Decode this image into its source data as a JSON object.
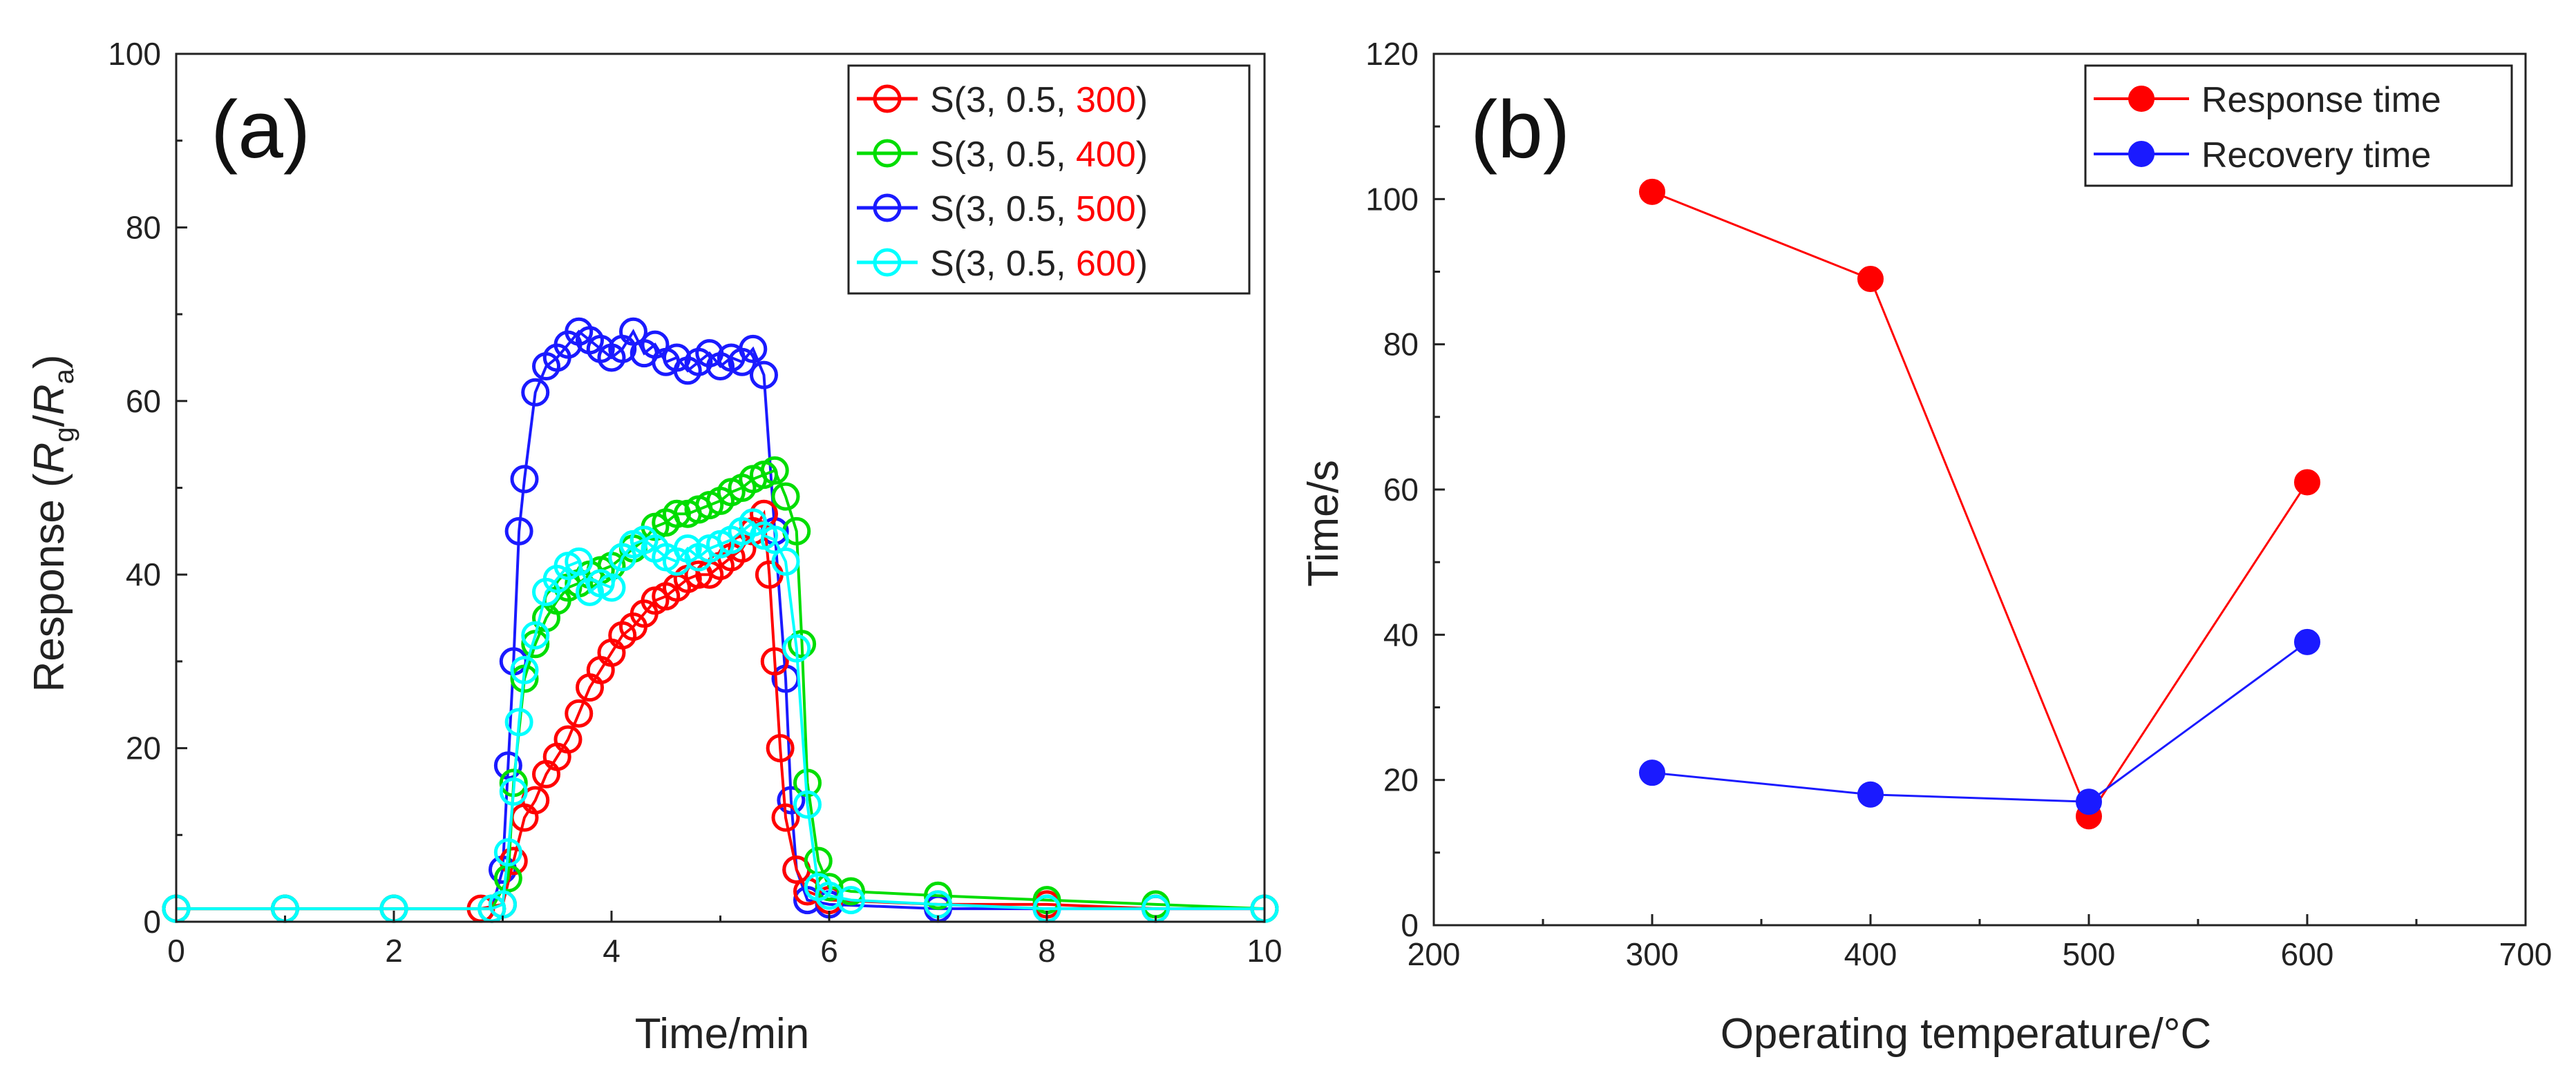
{
  "chart_data": [
    {
      "type": "line",
      "panel_label": "(a)",
      "xlabel": "Time/min",
      "ylabel": {
        "prefix": "Response (",
        "num": "R",
        "num_sub": "g",
        "slash": "/",
        "den": "R",
        "den_sub": "a",
        "suffix": ")"
      },
      "xlim": [
        0,
        10
      ],
      "ylim": [
        0,
        100
      ],
      "xticks": [
        0,
        2,
        4,
        6,
        8,
        10
      ],
      "yticks": [
        0,
        20,
        40,
        60,
        80,
        100
      ],
      "legend_position": "top-right",
      "series": [
        {
          "prefix": "S(3, 0.5, ",
          "temp": "300",
          "suffix": ")",
          "color": "#ff0000",
          "temp_color": "#ff0000",
          "x": [
            0,
            1,
            2,
            2.8,
            3.0,
            3.1,
            3.2,
            3.3,
            3.4,
            3.5,
            3.6,
            3.7,
            3.8,
            3.9,
            4.0,
            4.1,
            4.2,
            4.3,
            4.4,
            4.5,
            4.6,
            4.7,
            4.8,
            4.9,
            5.0,
            5.1,
            5.2,
            5.3,
            5.4,
            5.45,
            5.5,
            5.55,
            5.6,
            5.7,
            5.8,
            6.0,
            7,
            8,
            9,
            10
          ],
          "y": [
            1.5,
            1.5,
            1.5,
            1.5,
            2,
            7,
            12,
            14,
            17,
            19,
            21,
            24,
            27,
            29,
            31,
            33,
            34,
            35.5,
            37,
            37.5,
            38.5,
            39.5,
            40,
            40,
            41,
            42,
            43,
            45,
            47,
            40,
            30,
            20,
            12,
            6,
            3.5,
            2.5,
            2,
            2,
            1.5,
            1.5
          ]
        },
        {
          "prefix": "S(3, 0.5, ",
          "temp": "400",
          "suffix": ")",
          "color": "#00dd00",
          "temp_color": "#ff0000",
          "x": [
            0,
            1,
            2,
            2.9,
            3.05,
            3.1,
            3.2,
            3.3,
            3.4,
            3.5,
            3.6,
            3.7,
            3.8,
            3.9,
            4.0,
            4.1,
            4.2,
            4.3,
            4.4,
            4.5,
            4.6,
            4.7,
            4.8,
            4.9,
            5.0,
            5.1,
            5.2,
            5.3,
            5.4,
            5.5,
            5.6,
            5.7,
            5.75,
            5.8,
            5.9,
            6.0,
            6.2,
            7,
            8,
            9,
            10
          ],
          "y": [
            1.5,
            1.5,
            1.5,
            1.5,
            5,
            16,
            28,
            32,
            35,
            37,
            38.5,
            39,
            40,
            40.5,
            41,
            42,
            43,
            44,
            45.5,
            46,
            47,
            47,
            47.5,
            48,
            48.5,
            49.5,
            50,
            51,
            51.5,
            52,
            49,
            45,
            32,
            16,
            7,
            4,
            3.5,
            3,
            2.5,
            2,
            1.5
          ]
        },
        {
          "prefix": "S(3, 0.5, ",
          "temp": "500",
          "suffix": ")",
          "color": "#1a1aff",
          "temp_color": "#ff0000",
          "x": [
            0,
            1,
            2,
            2.9,
            3.0,
            3.05,
            3.1,
            3.15,
            3.2,
            3.3,
            3.4,
            3.5,
            3.6,
            3.7,
            3.8,
            3.9,
            4.0,
            4.1,
            4.2,
            4.3,
            4.4,
            4.5,
            4.6,
            4.7,
            4.8,
            4.9,
            5.0,
            5.1,
            5.2,
            5.3,
            5.4,
            5.5,
            5.6,
            5.65,
            5.7,
            5.8,
            6.0,
            7,
            8,
            9,
            10
          ],
          "y": [
            1.5,
            1.5,
            1.5,
            1.5,
            6,
            18,
            30,
            45,
            51,
            61,
            64,
            65,
            66.5,
            68,
            67,
            66,
            65,
            66,
            68,
            65.5,
            66.5,
            64.5,
            65,
            63.5,
            64.5,
            65.5,
            64,
            65,
            64.5,
            66,
            63,
            45,
            28,
            14,
            6,
            2.5,
            2,
            1.5,
            1.5,
            1.5,
            1.5
          ]
        },
        {
          "prefix": "S(3, 0.5, ",
          "temp": "600",
          "suffix": ")",
          "color": "#00ffff",
          "temp_color": "#ff0000",
          "x": [
            0,
            1,
            2,
            2.9,
            3.0,
            3.05,
            3.1,
            3.15,
            3.2,
            3.3,
            3.4,
            3.5,
            3.6,
            3.7,
            3.8,
            3.9,
            4.0,
            4.1,
            4.2,
            4.3,
            4.4,
            4.5,
            4.6,
            4.7,
            4.8,
            4.9,
            5.0,
            5.1,
            5.2,
            5.3,
            5.4,
            5.5,
            5.6,
            5.7,
            5.8,
            5.9,
            6.0,
            6.2,
            7,
            8,
            9,
            10
          ],
          "y": [
            1.5,
            1.5,
            1.5,
            1.5,
            2,
            8,
            15,
            23,
            29,
            33,
            38,
            39.5,
            41,
            41.5,
            38,
            39,
            38.5,
            42,
            43.5,
            44,
            43,
            42,
            41.5,
            43,
            42,
            43,
            43.5,
            44,
            45,
            46,
            44.5,
            44,
            41.5,
            31.5,
            13.5,
            4,
            3,
            2.5,
            2,
            1.5,
            1.5,
            1.5
          ]
        }
      ]
    },
    {
      "type": "line",
      "panel_label": "(b)",
      "xlabel": "Operating temperature/°C",
      "ylabel": "Time/s",
      "xlim": [
        200,
        700
      ],
      "ylim": [
        0,
        120
      ],
      "xticks": [
        200,
        300,
        400,
        500,
        600,
        700
      ],
      "yticks": [
        0,
        20,
        40,
        60,
        80,
        100,
        120
      ],
      "legend_position": "top-right",
      "categories": [
        300,
        400,
        500,
        600
      ],
      "series": [
        {
          "name": "Response time",
          "color": "#ff0000",
          "x": [
            300,
            400,
            500,
            600
          ],
          "values": [
            101,
            89,
            15,
            61
          ]
        },
        {
          "name": "Recovery time",
          "color": "#1a1aff",
          "x": [
            300,
            400,
            500,
            600
          ],
          "values": [
            21,
            18,
            17,
            39
          ]
        }
      ]
    }
  ]
}
